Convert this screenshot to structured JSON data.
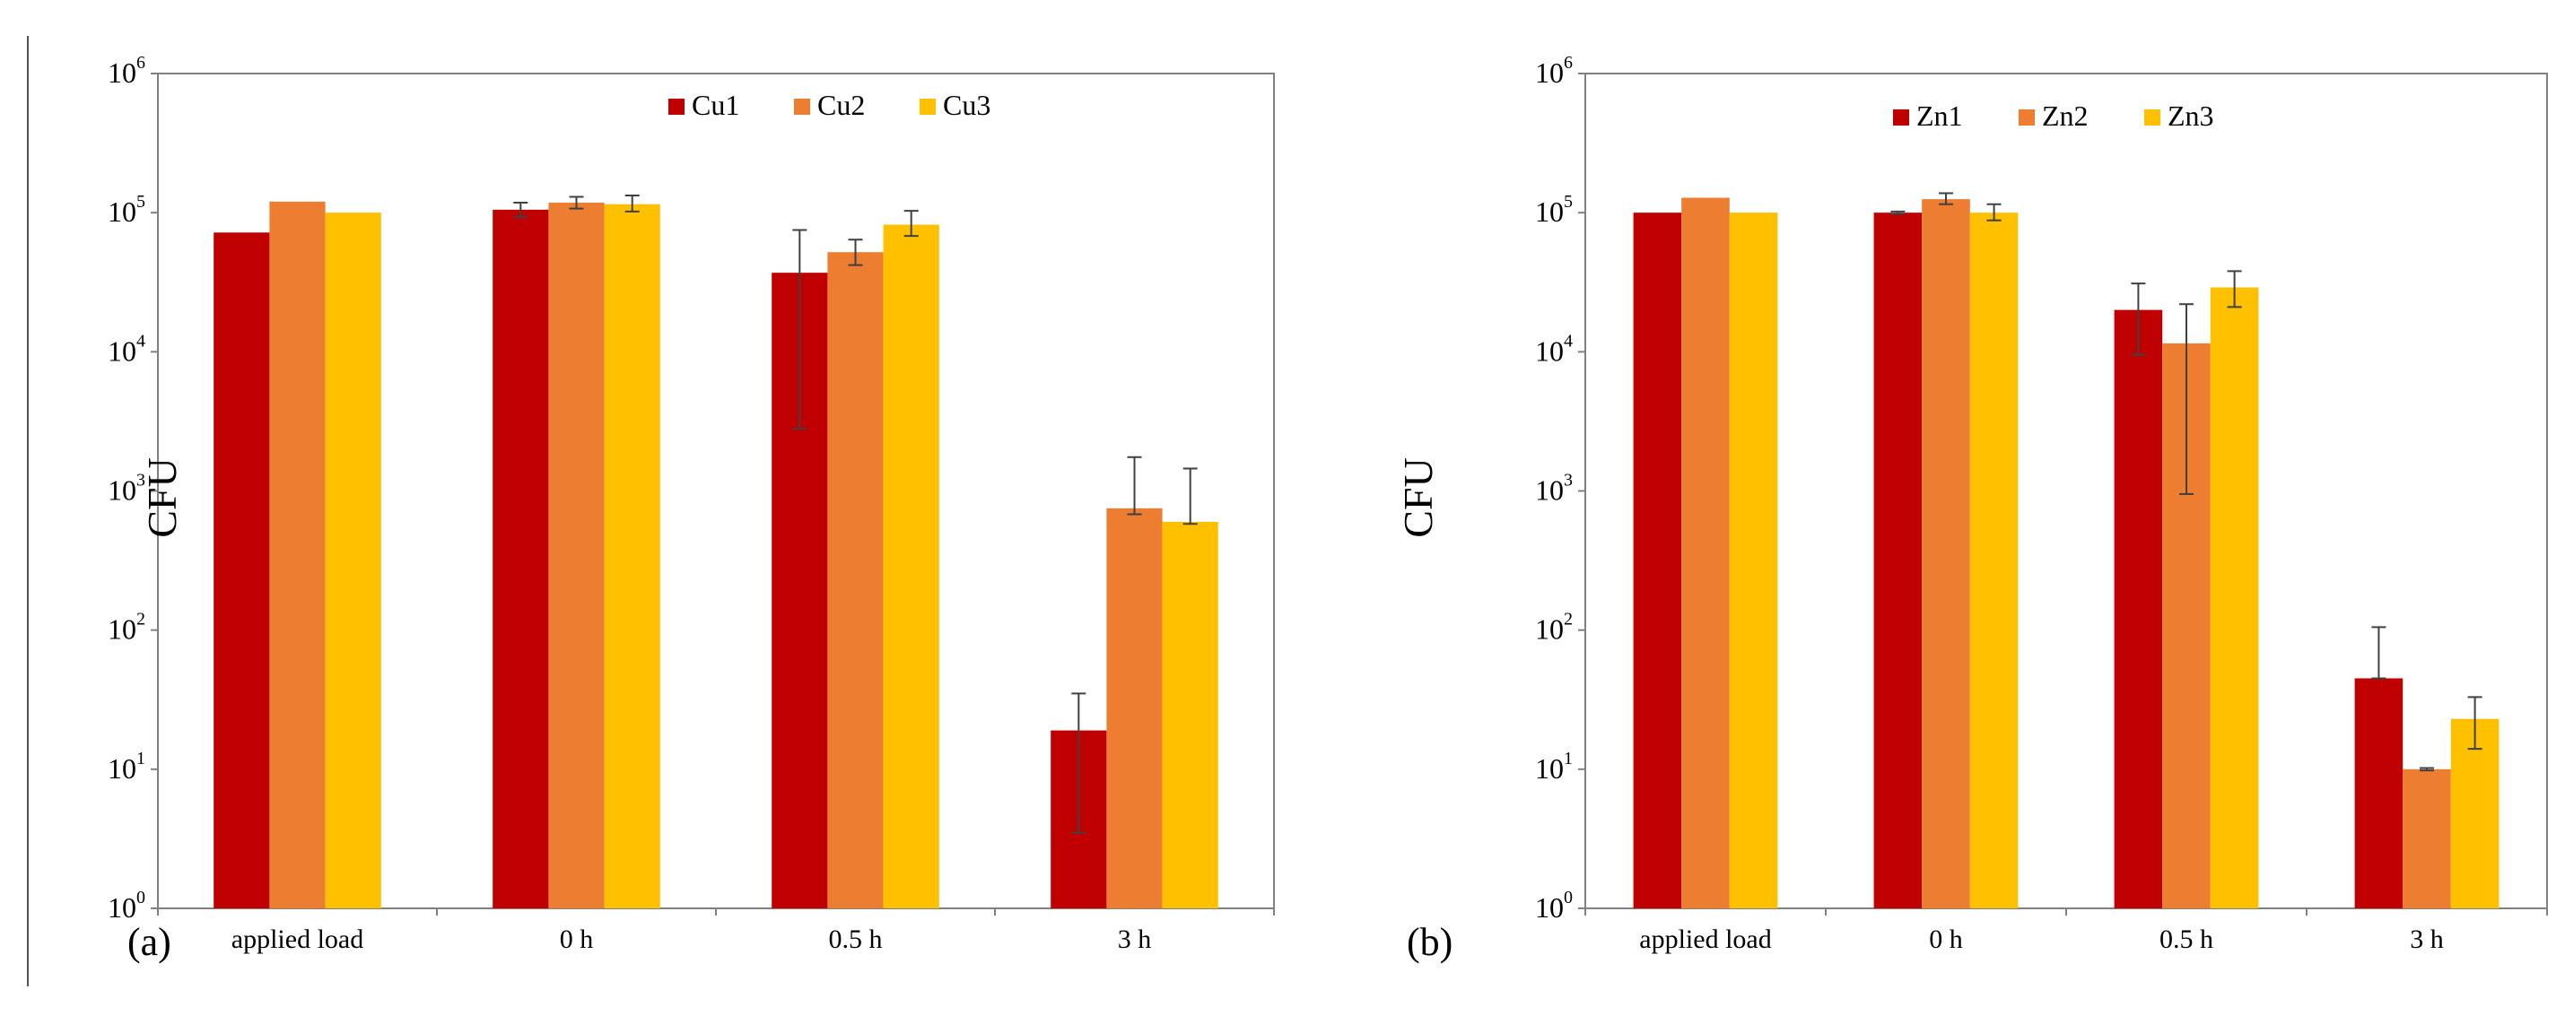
{
  "colors": {
    "series1": "#c00000",
    "series2": "#ed7d31",
    "series3": "#ffc000",
    "axis": "#808080",
    "errorbar": "#404040"
  },
  "chart_data": [
    {
      "type": "bar",
      "panel_label": "(a)",
      "ylabel": "CFU",
      "yscale": "log",
      "ylim": [
        1,
        1000000
      ],
      "ytick_labels": [
        {
          "base": "10",
          "exp": "0"
        },
        {
          "base": "10",
          "exp": "1"
        },
        {
          "base": "10",
          "exp": "2"
        },
        {
          "base": "10",
          "exp": "3"
        },
        {
          "base": "10",
          "exp": "4"
        },
        {
          "base": "10",
          "exp": "5"
        },
        {
          "base": "10",
          "exp": "6"
        }
      ],
      "categories": [
        "applied load",
        "0 h",
        "0.5 h",
        "3 h"
      ],
      "legend_position": "top-center",
      "series": [
        {
          "name": "Cu1",
          "values": [
            72000,
            105000,
            37000,
            19
          ],
          "errors": [
            null,
            [
              93000,
              118000
            ],
            [
              2800,
              75000
            ],
            [
              3.5,
              35
            ]
          ]
        },
        {
          "name": "Cu2",
          "values": [
            120000,
            118000,
            52000,
            750
          ],
          "errors": [
            null,
            [
              107000,
              130000
            ],
            [
              42000,
              64000
            ],
            [
              680,
              1750
            ]
          ]
        },
        {
          "name": "Cu3",
          "values": [
            100000,
            115000,
            82000,
            600
          ],
          "errors": [
            null,
            [
              102000,
              133000
            ],
            [
              68000,
              103000
            ],
            [
              580,
              1450
            ]
          ]
        }
      ]
    },
    {
      "type": "bar",
      "panel_label": "(b)",
      "ylabel": "CFU",
      "yscale": "log",
      "ylim": [
        1,
        1000000
      ],
      "ytick_labels": [
        {
          "base": "10",
          "exp": "0"
        },
        {
          "base": "10",
          "exp": "1"
        },
        {
          "base": "10",
          "exp": "2"
        },
        {
          "base": "10",
          "exp": "3"
        },
        {
          "base": "10",
          "exp": "4"
        },
        {
          "base": "10",
          "exp": "5"
        },
        {
          "base": "10",
          "exp": "6"
        }
      ],
      "categories": [
        "applied load",
        "0 h",
        "0.5 h",
        "3 h"
      ],
      "legend_position": "top-center",
      "series": [
        {
          "name": "Zn1",
          "values": [
            100000,
            100000,
            20000,
            45
          ],
          "errors": [
            null,
            [
              98000,
              102000
            ],
            [
              9500,
              31000
            ],
            [
              45,
              105
            ]
          ]
        },
        {
          "name": "Zn2",
          "values": [
            128000,
            125000,
            11500,
            10
          ],
          "errors": [
            null,
            [
              115000,
              138000
            ],
            [
              950,
              22000
            ],
            [
              9.8,
              10.2
            ]
          ]
        },
        {
          "name": "Zn3",
          "values": [
            100000,
            100000,
            29000,
            23
          ],
          "errors": [
            null,
            [
              88000,
              115000
            ],
            [
              21000,
              38000
            ],
            [
              14,
              33
            ]
          ]
        }
      ]
    }
  ]
}
